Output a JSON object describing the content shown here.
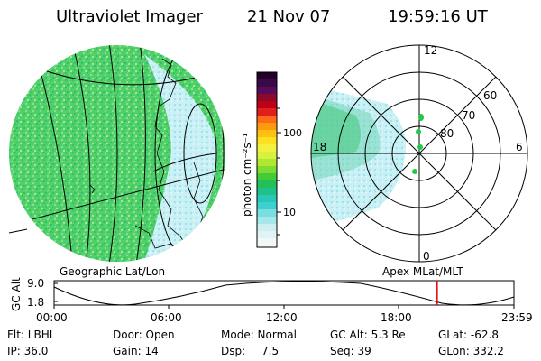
{
  "header": {
    "instrument": "Ultraviolet Imager",
    "date": "21 Nov 07",
    "time": "19:59:16 UT"
  },
  "colorbar": {
    "label": "photon cm⁻²s⁻¹",
    "ticks": [
      "100",
      "10"
    ]
  },
  "polar": {
    "lat_labels": [
      "80",
      "70",
      "60"
    ],
    "mlt_labels": [
      "12",
      "18",
      "6",
      "0"
    ]
  },
  "projections": {
    "left": "Geographic Lat/Lon",
    "right": "Apex MLat/MLT"
  },
  "timeline": {
    "axis_label": "GC Alt",
    "y_ticks": [
      "9.0",
      "1.8"
    ],
    "x_ticks": [
      "00:00",
      "06:00",
      "12:00",
      "18:00",
      "23:59"
    ],
    "current_time_fraction": 0.833
  },
  "info": {
    "flt": "Flt: LBHL",
    "door": "Door: Open",
    "mode": "Mode: Normal",
    "gc_alt": "GC Alt: 5.3 Re",
    "glat": "GLat: -62.8",
    "ip": "IP: 36.0",
    "gain": "Gain: 14",
    "dsp_label": "Dsp:",
    "dsp_value": "7.5",
    "seq": "Seq: 39",
    "glon": "GLon: 332.2"
  },
  "colors": {
    "aurora_green": "#22c84a",
    "haze_cyan": "#aee8ee",
    "marker_red": "#dd0000"
  }
}
